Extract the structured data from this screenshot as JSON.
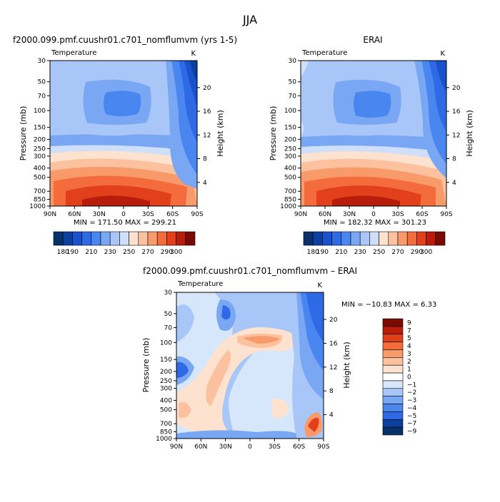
{
  "figure": {
    "main_title": "JJA"
  },
  "chart_data": [
    {
      "type": "contour",
      "id": "panel-model",
      "title": "f2000.099.pmf.cuushr01.c701_nomflumvm (yrs 1-5)",
      "variable_label": "Temperature",
      "units": "K",
      "ylabel": "Pressure (mb)",
      "y2label": "Height (km)",
      "x_ticks": [
        "90N",
        "60N",
        "30N",
        "0",
        "30S",
        "60S",
        "90S"
      ],
      "y_ticks": [
        "30",
        "50",
        "70",
        "100",
        "150",
        "200",
        "250",
        "300",
        "400",
        "500",
        "700",
        "850",
        "1000"
      ],
      "y2_ticks": [
        "20",
        "16",
        "12",
        "8",
        "4"
      ],
      "min": "171.50",
      "max": "299.21",
      "stats_text": "MIN = 171.50   MAX = 299.21",
      "colorbar_levels": [
        "180",
        "190",
        "200",
        "210",
        "220",
        "230",
        "240",
        "250",
        "260",
        "270",
        "280",
        "290",
        "300"
      ],
      "colorbar_labels": [
        "180",
        "190",
        "210",
        "230",
        "250",
        "270",
        "290",
        "300"
      ]
    },
    {
      "type": "contour",
      "id": "panel-erai",
      "title": "ERAI",
      "variable_label": "Temperature",
      "units": "K",
      "ylabel": "Pressure (mb)",
      "y2label": "Height (km)",
      "x_ticks": [
        "90N",
        "60N",
        "30N",
        "0",
        "30S",
        "60S",
        "90S"
      ],
      "y_ticks": [
        "30",
        "50",
        "70",
        "100",
        "150",
        "200",
        "250",
        "300",
        "400",
        "500",
        "700",
        "850",
        "1000"
      ],
      "y2_ticks": [
        "20",
        "16",
        "12",
        "8",
        "4"
      ],
      "min": "182.32",
      "max": "301.23",
      "stats_text": "MIN = 182.32   MAX = 301.23",
      "colorbar_levels": [
        "180",
        "190",
        "200",
        "210",
        "220",
        "230",
        "240",
        "250",
        "260",
        "270",
        "280",
        "290",
        "300"
      ],
      "colorbar_labels": [
        "180",
        "190",
        "210",
        "230",
        "250",
        "270",
        "290",
        "300"
      ]
    },
    {
      "type": "contour",
      "id": "panel-diff",
      "title": "f2000.099.pmf.cuushr01.c701_nomflumvm – ERAI",
      "variable_label": "Temperature",
      "units": "K",
      "ylabel": "Pressure (mb)",
      "y2label": "Height (km)",
      "x_ticks": [
        "90N",
        "60N",
        "30N",
        "0",
        "30S",
        "60S",
        "90S"
      ],
      "y_ticks": [
        "30",
        "50",
        "70",
        "100",
        "150",
        "200",
        "250",
        "300",
        "400",
        "500",
        "700",
        "850",
        "1000"
      ],
      "y2_ticks": [
        "20",
        "16",
        "12",
        "8",
        "4"
      ],
      "min": "-10.83",
      "max": "6.33",
      "stats_text": "MIN = −10.83   MAX =    6.33",
      "colorbar_levels": [
        "9",
        "7",
        "5",
        "4",
        "3",
        "2",
        "1",
        "0",
        "−1",
        "−2",
        "−3",
        "−4",
        "−5",
        "−7",
        "−9"
      ]
    }
  ],
  "colors": {
    "temp_scale": [
      "#08306b",
      "#0b3fa0",
      "#1a52cc",
      "#2e6ae6",
      "#4a86f0",
      "#7aa7f4",
      "#a8c6f7",
      "#cfdff9",
      "#fde3cf",
      "#fcc2a0",
      "#f99a6b",
      "#f46c3b",
      "#e2401b",
      "#b81d0c",
      "#7a0a04"
    ],
    "diff_scale": [
      "#7a0a04",
      "#b81d0c",
      "#e2401b",
      "#f46c3b",
      "#f99a6b",
      "#fcc2a0",
      "#fde3cf",
      "#ffffff",
      "#d6e6fb",
      "#a8c6f7",
      "#7aa7f4",
      "#4a86f0",
      "#2e6ae6",
      "#0b3fa0",
      "#08306b"
    ]
  }
}
